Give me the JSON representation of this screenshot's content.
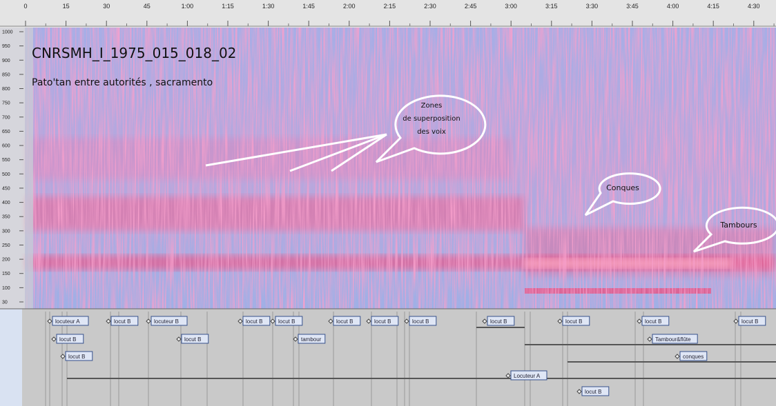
{
  "timeline": {
    "ticks": [
      "0",
      "15",
      "30",
      "45",
      "1:00",
      "1:15",
      "1:30",
      "1:45",
      "2:00",
      "2:15",
      "2:30",
      "2:45",
      "3:00",
      "3:15",
      "3:30",
      "3:45",
      "4:00",
      "4:15",
      "4:30"
    ]
  },
  "frequency_axis": {
    "labels": [
      "1000",
      "950",
      "900",
      "850",
      "800",
      "750",
      "700",
      "650",
      "600",
      "550",
      "500",
      "450",
      "400",
      "350",
      "300",
      "250",
      "200",
      "150",
      "100",
      "30"
    ]
  },
  "spectrogram": {
    "title": "CNRSMH_I_1975_015_018_02",
    "subtitle": "Pato'tan entre autorités , sacramento",
    "annotations": {
      "voices": [
        "Zones",
        "de superposition",
        "des voix"
      ],
      "conches": "Conques",
      "drums": "Tambours"
    }
  },
  "tiers": {
    "labels": [
      "locuteur A",
      "locut B",
      "locuteur B",
      "locut B",
      "locut B",
      "locut B",
      "locut B",
      "locut B",
      "locut B",
      "locut B",
      "locut B",
      "locut B",
      "locut B",
      "locut B",
      "tambour",
      "Tambour&flûte",
      "locut B",
      "conques",
      "Locuteur A",
      "locut B"
    ]
  }
}
